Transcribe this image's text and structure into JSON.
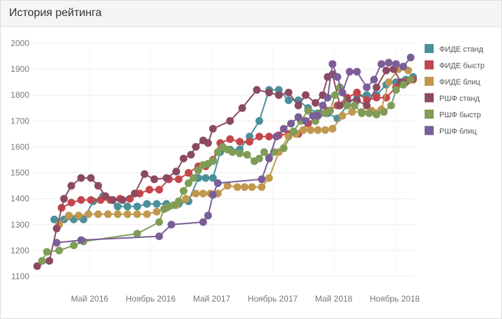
{
  "widget": {
    "title": "История рейтинга"
  },
  "chart_data": {
    "type": "line",
    "title": "История рейтинга",
    "xlabel": "",
    "ylabel": "",
    "ylim": [
      1100,
      2000
    ],
    "yticks": [
      1100,
      1200,
      1300,
      1400,
      1500,
      1600,
      1700,
      1800,
      1900,
      2000
    ],
    "xticks": [
      {
        "label": "Май 2016",
        "t": 2016.33
      },
      {
        "label": "Ноябрь 2016",
        "t": 2016.83
      },
      {
        "label": "Май 2017",
        "t": 2017.33
      },
      {
        "label": "Ноябрь 2017",
        "t": 2017.83
      },
      {
        "label": "Май 2018",
        "t": 2018.33
      },
      {
        "label": "Ноябрь 2018",
        "t": 2018.83
      }
    ],
    "xlim": [
      2015.87,
      2019.0
    ],
    "grid": true,
    "legend": "right",
    "series": [
      {
        "name": "ФИДЕ станд",
        "color": "#4a8f9b",
        "points": [
          [
            2016.04,
            1320
          ],
          [
            2016.12,
            1320
          ],
          [
            2016.2,
            1320
          ],
          [
            2016.28,
            1320
          ],
          [
            2016.36,
            1390
          ],
          [
            2016.44,
            1410
          ],
          [
            2016.56,
            1370
          ],
          [
            2016.64,
            1370
          ],
          [
            2016.72,
            1370
          ],
          [
            2016.8,
            1380
          ],
          [
            2016.88,
            1380
          ],
          [
            2016.96,
            1380
          ],
          [
            2017.06,
            1380
          ],
          [
            2017.14,
            1390
          ],
          [
            2017.22,
            1480
          ],
          [
            2017.28,
            1480
          ],
          [
            2017.34,
            1480
          ],
          [
            2017.4,
            1580
          ],
          [
            2017.48,
            1590
          ],
          [
            2017.56,
            1590
          ],
          [
            2017.64,
            1640
          ],
          [
            2017.72,
            1700
          ],
          [
            2017.8,
            1820
          ],
          [
            2017.88,
            1820
          ],
          [
            2017.96,
            1780
          ],
          [
            2018.04,
            1780
          ],
          [
            2018.12,
            1750
          ],
          [
            2018.2,
            1730
          ],
          [
            2018.28,
            1730
          ],
          [
            2018.36,
            1710
          ],
          [
            2018.44,
            1760
          ],
          [
            2018.52,
            1800
          ],
          [
            2018.6,
            1800
          ],
          [
            2018.68,
            1800
          ],
          [
            2018.76,
            1840
          ],
          [
            2018.84,
            1850
          ],
          [
            2018.92,
            1860
          ],
          [
            2018.98,
            1870
          ]
        ]
      },
      {
        "name": "ФИДЕ быстр",
        "color": "#c4464c",
        "points": [
          [
            2016.1,
            1365
          ],
          [
            2016.18,
            1385
          ],
          [
            2016.26,
            1395
          ],
          [
            2016.34,
            1395
          ],
          [
            2016.42,
            1395
          ],
          [
            2016.5,
            1395
          ],
          [
            2016.58,
            1400
          ],
          [
            2016.66,
            1400
          ],
          [
            2016.74,
            1420
          ],
          [
            2016.82,
            1435
          ],
          [
            2016.9,
            1435
          ],
          [
            2016.98,
            1475
          ],
          [
            2017.06,
            1475
          ],
          [
            2017.14,
            1500
          ],
          [
            2017.22,
            1525
          ],
          [
            2017.28,
            1525
          ],
          [
            2017.34,
            1550
          ],
          [
            2017.4,
            1615
          ],
          [
            2017.48,
            1630
          ],
          [
            2017.56,
            1620
          ],
          [
            2017.64,
            1620
          ],
          [
            2017.72,
            1640
          ],
          [
            2017.8,
            1640
          ],
          [
            2017.88,
            1645
          ],
          [
            2017.96,
            1650
          ],
          [
            2018.04,
            1650
          ],
          [
            2018.12,
            1690
          ],
          [
            2018.2,
            1720
          ],
          [
            2018.28,
            1740
          ],
          [
            2018.36,
            1760
          ],
          [
            2018.44,
            1790
          ],
          [
            2018.52,
            1810
          ],
          [
            2018.6,
            1780
          ],
          [
            2018.68,
            1790
          ],
          [
            2018.76,
            1790
          ],
          [
            2018.84,
            1830
          ],
          [
            2018.92,
            1850
          ],
          [
            2018.98,
            1860
          ]
        ]
      },
      {
        "name": "ФИДЕ блиц",
        "color": "#c0984e",
        "points": [
          [
            2016.08,
            1300
          ],
          [
            2016.16,
            1335
          ],
          [
            2016.24,
            1335
          ],
          [
            2016.32,
            1340
          ],
          [
            2016.4,
            1340
          ],
          [
            2016.48,
            1340
          ],
          [
            2016.56,
            1340
          ],
          [
            2016.64,
            1340
          ],
          [
            2016.72,
            1340
          ],
          [
            2016.8,
            1340
          ],
          [
            2016.88,
            1350
          ],
          [
            2016.96,
            1365
          ],
          [
            2017.04,
            1375
          ],
          [
            2017.12,
            1400
          ],
          [
            2017.2,
            1420
          ],
          [
            2017.26,
            1420
          ],
          [
            2017.32,
            1420
          ],
          [
            2017.38,
            1420
          ],
          [
            2017.46,
            1450
          ],
          [
            2017.54,
            1445
          ],
          [
            2017.6,
            1445
          ],
          [
            2017.66,
            1445
          ],
          [
            2017.74,
            1445
          ],
          [
            2017.8,
            1480
          ],
          [
            2017.88,
            1580
          ],
          [
            2017.96,
            1640
          ],
          [
            2018.02,
            1650
          ],
          [
            2018.08,
            1665
          ],
          [
            2018.14,
            1665
          ],
          [
            2018.2,
            1665
          ],
          [
            2018.26,
            1665
          ],
          [
            2018.32,
            1670
          ],
          [
            2018.4,
            1720
          ],
          [
            2018.48,
            1735
          ],
          [
            2018.56,
            1735
          ],
          [
            2018.64,
            1740
          ],
          [
            2018.72,
            1745
          ],
          [
            2018.78,
            1850
          ],
          [
            2018.86,
            1900
          ],
          [
            2018.94,
            1895
          ]
        ]
      },
      {
        "name": "РШФ станд",
        "color": "#8b4a62",
        "points": [
          [
            2015.9,
            1140
          ],
          [
            2016.0,
            1160
          ],
          [
            2016.06,
            1285
          ],
          [
            2016.12,
            1400
          ],
          [
            2016.18,
            1450
          ],
          [
            2016.26,
            1480
          ],
          [
            2016.34,
            1480
          ],
          [
            2016.4,
            1450
          ],
          [
            2016.46,
            1410
          ],
          [
            2016.52,
            1395
          ],
          [
            2016.6,
            1395
          ],
          [
            2016.7,
            1420
          ],
          [
            2016.78,
            1495
          ],
          [
            2016.86,
            1475
          ],
          [
            2016.96,
            1480
          ],
          [
            2017.04,
            1505
          ],
          [
            2017.1,
            1555
          ],
          [
            2017.16,
            1570
          ],
          [
            2017.2,
            1600
          ],
          [
            2017.26,
            1625
          ],
          [
            2017.3,
            1615
          ],
          [
            2017.34,
            1670
          ],
          [
            2017.48,
            1700
          ],
          [
            2017.58,
            1750
          ],
          [
            2017.7,
            1820
          ],
          [
            2017.8,
            1810
          ],
          [
            2017.88,
            1800
          ],
          [
            2017.96,
            1810
          ],
          [
            2018.04,
            1760
          ],
          [
            2018.1,
            1800
          ],
          [
            2018.18,
            1770
          ],
          [
            2018.24,
            1800
          ],
          [
            2018.28,
            1870
          ],
          [
            2018.32,
            1880
          ],
          [
            2018.38,
            1760
          ],
          [
            2018.44,
            1780
          ],
          [
            2018.52,
            1780
          ],
          [
            2018.6,
            1760
          ],
          [
            2018.68,
            1830
          ],
          [
            2018.76,
            1895
          ],
          [
            2018.82,
            1900
          ],
          [
            2018.88,
            1850
          ],
          [
            2018.96,
            1860
          ]
        ]
      },
      {
        "name": "РШФ быстр",
        "color": "#7f9d56",
        "points": [
          [
            2015.94,
            1160
          ],
          [
            2015.98,
            1195
          ],
          [
            2016.08,
            1200
          ],
          [
            2016.2,
            1220
          ],
          [
            2016.28,
            1235
          ],
          [
            2016.72,
            1265
          ],
          [
            2016.9,
            1310
          ],
          [
            2016.94,
            1360
          ],
          [
            2016.98,
            1370
          ],
          [
            2017.02,
            1375
          ],
          [
            2017.06,
            1390
          ],
          [
            2017.1,
            1430
          ],
          [
            2017.14,
            1460
          ],
          [
            2017.18,
            1480
          ],
          [
            2017.22,
            1510
          ],
          [
            2017.26,
            1530
          ],
          [
            2017.3,
            1535
          ],
          [
            2017.34,
            1545
          ],
          [
            2017.38,
            1580
          ],
          [
            2017.42,
            1600
          ],
          [
            2017.46,
            1590
          ],
          [
            2017.5,
            1580
          ],
          [
            2017.56,
            1575
          ],
          [
            2017.62,
            1570
          ],
          [
            2017.68,
            1545
          ],
          [
            2017.72,
            1555
          ],
          [
            2017.76,
            1580
          ],
          [
            2017.8,
            1560
          ],
          [
            2017.84,
            1580
          ],
          [
            2017.92,
            1595
          ],
          [
            2018.0,
            1660
          ],
          [
            2018.06,
            1700
          ],
          [
            2018.12,
            1740
          ],
          [
            2018.18,
            1700
          ],
          [
            2018.22,
            1730
          ],
          [
            2018.26,
            1730
          ],
          [
            2018.3,
            1740
          ],
          [
            2018.34,
            1800
          ],
          [
            2018.38,
            1830
          ],
          [
            2018.44,
            1760
          ],
          [
            2018.5,
            1760
          ],
          [
            2018.56,
            1730
          ],
          [
            2018.62,
            1730
          ],
          [
            2018.68,
            1725
          ],
          [
            2018.74,
            1735
          ],
          [
            2018.8,
            1760
          ],
          [
            2018.84,
            1820
          ],
          [
            2018.9,
            1840
          ],
          [
            2018.96,
            1860
          ]
        ]
      },
      {
        "name": "РШФ блиц",
        "color": "#7a5e97",
        "points": [
          [
            2016.06,
            1230
          ],
          [
            2016.26,
            1240
          ],
          [
            2016.9,
            1255
          ],
          [
            2017.0,
            1300
          ],
          [
            2017.26,
            1310
          ],
          [
            2017.3,
            1335
          ],
          [
            2017.34,
            1415
          ],
          [
            2017.38,
            1460
          ],
          [
            2017.74,
            1475
          ],
          [
            2017.8,
            1555
          ],
          [
            2017.86,
            1640
          ],
          [
            2017.92,
            1670
          ],
          [
            2017.98,
            1690
          ],
          [
            2018.04,
            1715
          ],
          [
            2018.1,
            1700
          ],
          [
            2018.16,
            1720
          ],
          [
            2018.2,
            1720
          ],
          [
            2018.24,
            1760
          ],
          [
            2018.28,
            1790
          ],
          [
            2018.32,
            1920
          ],
          [
            2018.36,
            1870
          ],
          [
            2018.4,
            1810
          ],
          [
            2018.46,
            1890
          ],
          [
            2018.52,
            1890
          ],
          [
            2018.6,
            1830
          ],
          [
            2018.66,
            1860
          ],
          [
            2018.72,
            1920
          ],
          [
            2018.78,
            1925
          ],
          [
            2018.84,
            1920
          ],
          [
            2018.9,
            1910
          ],
          [
            2018.96,
            1945
          ]
        ]
      }
    ]
  }
}
